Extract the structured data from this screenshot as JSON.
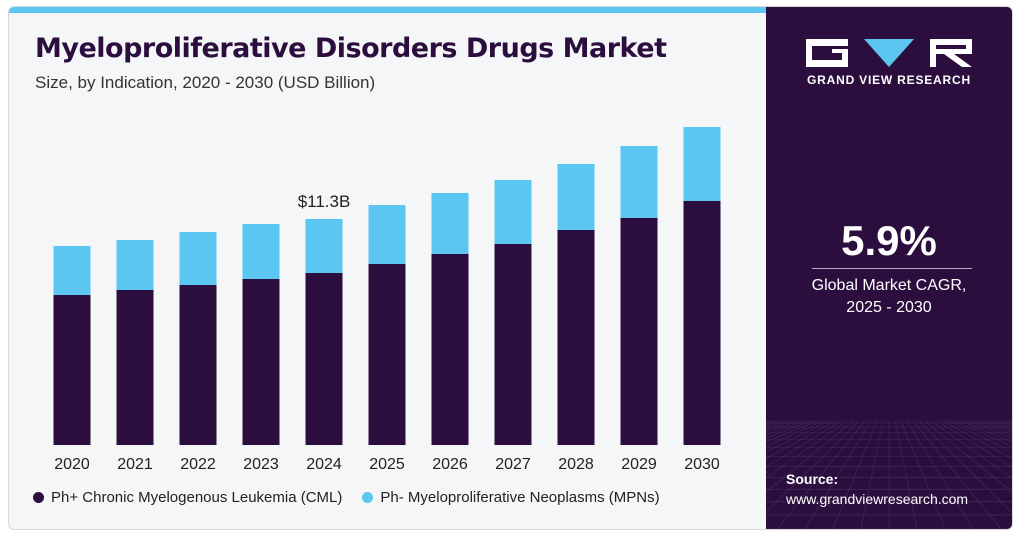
{
  "header": {
    "title": "Myeloproliferative Disorders Drugs Market",
    "subtitle": "Size, by Indication, 2020 - 2030 (USD Billion)"
  },
  "chart_data": {
    "type": "bar",
    "stacked": true,
    "categories": [
      "2020",
      "2021",
      "2022",
      "2023",
      "2024",
      "2025",
      "2026",
      "2027",
      "2028",
      "2029",
      "2030"
    ],
    "series": [
      {
        "name": "Ph+ Chronic Myelogenous Leukemia (CML)",
        "color": "#2c0e3e",
        "values": [
          7.5,
          7.75,
          8.0,
          8.3,
          8.6,
          9.05,
          9.55,
          10.05,
          10.75,
          11.35,
          12.2
        ]
      },
      {
        "name": "Ph- Myeloproliferative Neoplasms (MPNs)",
        "color": "#5bc7f0",
        "values": [
          2.45,
          2.5,
          2.65,
          2.75,
          2.7,
          2.95,
          3.05,
          3.2,
          3.3,
          3.6,
          3.7
        ]
      }
    ],
    "annotations": [
      {
        "category": "2024",
        "label": "$11.3B"
      }
    ],
    "ylim": [
      0,
      16.5
    ],
    "grid": false,
    "legend_position": "bottom"
  },
  "brand": {
    "name": "GRAND VIEW RESEARCH"
  },
  "stat": {
    "value": "5.9%",
    "label_line1": "Global Market CAGR,",
    "label_line2": "2025 - 2030"
  },
  "source": {
    "label": "Source:",
    "url": "www.grandviewresearch.com"
  }
}
